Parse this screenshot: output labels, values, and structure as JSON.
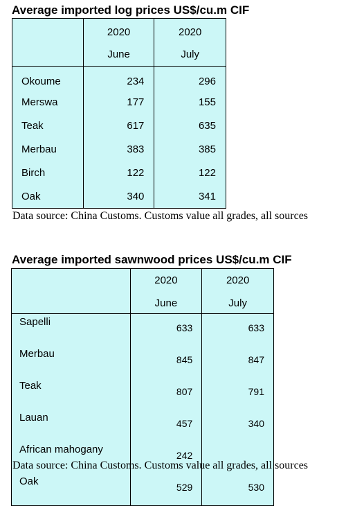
{
  "log_prices": {
    "title": "Average imported log prices US$/cu.m CIF",
    "columns": [
      {
        "year": "2020",
        "month": "June"
      },
      {
        "year": "2020",
        "month": "July"
      }
    ],
    "rows": [
      {
        "species": "Okoume",
        "june": "234",
        "july": "296"
      },
      {
        "species": "Merswa",
        "june": "177",
        "july": "155"
      },
      {
        "species": "Teak",
        "june": "617",
        "july": "635"
      },
      {
        "species": "Merbau",
        "june": "383",
        "july": "385"
      },
      {
        "species": "Birch",
        "june": "122",
        "july": "122"
      },
      {
        "species": "Oak",
        "june": "340",
        "july": "341"
      }
    ],
    "source": "Data source: China Customs. Customs value all grades, all sources"
  },
  "sawnwood_prices": {
    "title": "Average imported sawnwood prices US$/cu.m CIF",
    "columns": [
      {
        "year": "2020",
        "month": "June"
      },
      {
        "year": "2020",
        "month": "July"
      }
    ],
    "rows": [
      {
        "species": "Sapelli",
        "june": "633",
        "july": "633"
      },
      {
        "species": "Merbau",
        "june": "845",
        "july": "847"
      },
      {
        "species": "Teak",
        "june": "807",
        "july": "791"
      },
      {
        "species": "Lauan",
        "june": "457",
        "july": "340"
      },
      {
        "species": "African mahogany",
        "june": "242",
        "july": ""
      },
      {
        "species": "Oak",
        "june": "529",
        "july": "530"
      }
    ],
    "source": "Data source: China Customs. Customs value all grades, all sources"
  }
}
